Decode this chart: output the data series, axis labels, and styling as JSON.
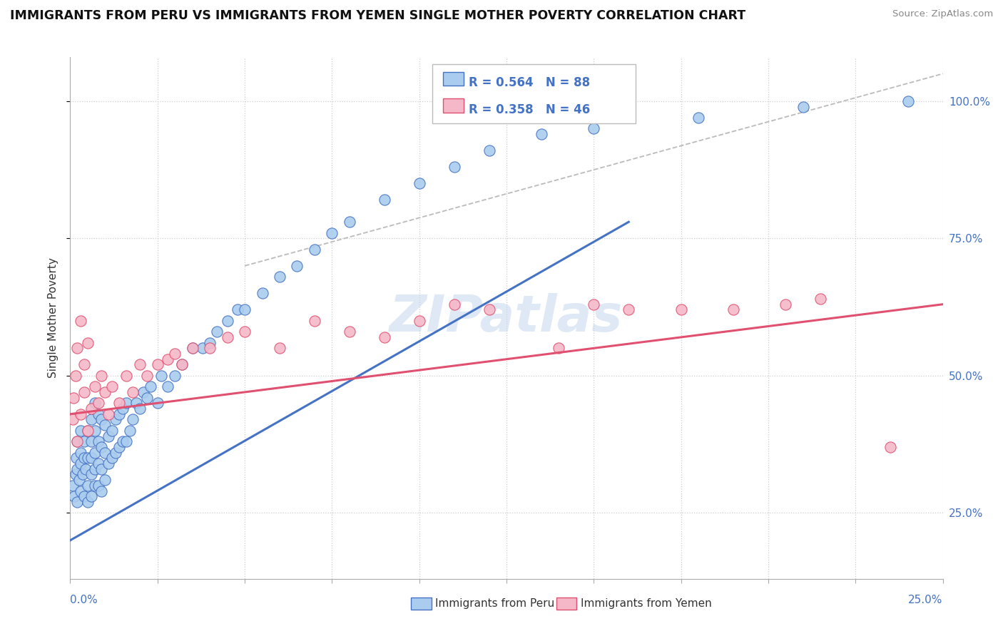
{
  "title": "IMMIGRANTS FROM PERU VS IMMIGRANTS FROM YEMEN SINGLE MOTHER POVERTY CORRELATION CHART",
  "source": "Source: ZipAtlas.com",
  "ylabel": "Single Mother Poverty",
  "ytick_labels": [
    "25.0%",
    "50.0%",
    "75.0%",
    "100.0%"
  ],
  "ytick_values": [
    0.25,
    0.5,
    0.75,
    1.0
  ],
  "xmin": 0.0,
  "xmax": 0.25,
  "ymin": 0.13,
  "ymax": 1.08,
  "legend_r_peru": "R = 0.564",
  "legend_n_peru": "N = 88",
  "legend_r_yemen": "R = 0.358",
  "legend_n_yemen": "N = 46",
  "color_peru": "#aaccee",
  "color_yemen": "#f5b8c8",
  "color_peru_line": "#4472c4",
  "color_yemen_line": "#e05070",
  "color_legend_text": "#4472c4",
  "watermark": "ZIPatlas",
  "peru_x": [
    0.0008,
    0.0012,
    0.0015,
    0.0018,
    0.002,
    0.002,
    0.002,
    0.0025,
    0.003,
    0.003,
    0.003,
    0.003,
    0.0035,
    0.004,
    0.004,
    0.004,
    0.0045,
    0.005,
    0.005,
    0.005,
    0.005,
    0.006,
    0.006,
    0.006,
    0.006,
    0.006,
    0.007,
    0.007,
    0.007,
    0.007,
    0.007,
    0.008,
    0.008,
    0.008,
    0.008,
    0.009,
    0.009,
    0.009,
    0.009,
    0.01,
    0.01,
    0.01,
    0.011,
    0.011,
    0.012,
    0.012,
    0.013,
    0.013,
    0.014,
    0.014,
    0.015,
    0.015,
    0.016,
    0.016,
    0.017,
    0.018,
    0.019,
    0.02,
    0.021,
    0.022,
    0.023,
    0.025,
    0.026,
    0.028,
    0.03,
    0.032,
    0.035,
    0.038,
    0.04,
    0.042,
    0.045,
    0.048,
    0.05,
    0.055,
    0.06,
    0.065,
    0.07,
    0.075,
    0.08,
    0.09,
    0.1,
    0.11,
    0.12,
    0.135,
    0.15,
    0.18,
    0.21,
    0.24
  ],
  "peru_y": [
    0.3,
    0.28,
    0.32,
    0.35,
    0.27,
    0.33,
    0.38,
    0.31,
    0.29,
    0.34,
    0.36,
    0.4,
    0.32,
    0.28,
    0.35,
    0.38,
    0.33,
    0.27,
    0.3,
    0.35,
    0.4,
    0.28,
    0.32,
    0.35,
    0.38,
    0.42,
    0.3,
    0.33,
    0.36,
    0.4,
    0.45,
    0.3,
    0.34,
    0.38,
    0.43,
    0.29,
    0.33,
    0.37,
    0.42,
    0.31,
    0.36,
    0.41,
    0.34,
    0.39,
    0.35,
    0.4,
    0.36,
    0.42,
    0.37,
    0.43,
    0.38,
    0.44,
    0.38,
    0.45,
    0.4,
    0.42,
    0.45,
    0.44,
    0.47,
    0.46,
    0.48,
    0.45,
    0.5,
    0.48,
    0.5,
    0.52,
    0.55,
    0.55,
    0.56,
    0.58,
    0.6,
    0.62,
    0.62,
    0.65,
    0.68,
    0.7,
    0.73,
    0.76,
    0.78,
    0.82,
    0.85,
    0.88,
    0.91,
    0.94,
    0.95,
    0.97,
    0.99,
    1.0
  ],
  "yemen_x": [
    0.0008,
    0.001,
    0.0015,
    0.002,
    0.002,
    0.003,
    0.003,
    0.004,
    0.004,
    0.005,
    0.005,
    0.006,
    0.007,
    0.008,
    0.009,
    0.01,
    0.011,
    0.012,
    0.014,
    0.016,
    0.018,
    0.02,
    0.022,
    0.025,
    0.028,
    0.03,
    0.032,
    0.035,
    0.04,
    0.045,
    0.05,
    0.06,
    0.07,
    0.08,
    0.09,
    0.1,
    0.11,
    0.12,
    0.14,
    0.15,
    0.16,
    0.175,
    0.19,
    0.205,
    0.215,
    0.235
  ],
  "yemen_y": [
    0.42,
    0.46,
    0.5,
    0.38,
    0.55,
    0.43,
    0.6,
    0.47,
    0.52,
    0.4,
    0.56,
    0.44,
    0.48,
    0.45,
    0.5,
    0.47,
    0.43,
    0.48,
    0.45,
    0.5,
    0.47,
    0.52,
    0.5,
    0.52,
    0.53,
    0.54,
    0.52,
    0.55,
    0.55,
    0.57,
    0.58,
    0.55,
    0.6,
    0.58,
    0.57,
    0.6,
    0.63,
    0.62,
    0.55,
    0.63,
    0.62,
    0.62,
    0.62,
    0.63,
    0.64,
    0.37
  ],
  "peru_trendline_x": [
    0.0,
    0.16
  ],
  "peru_trendline_y": [
    0.2,
    0.78
  ],
  "yemen_trendline_x": [
    0.0,
    0.25
  ],
  "yemen_trendline_y": [
    0.43,
    0.63
  ],
  "diag_line_x": [
    0.05,
    0.25
  ],
  "diag_line_y": [
    0.7,
    1.05
  ]
}
